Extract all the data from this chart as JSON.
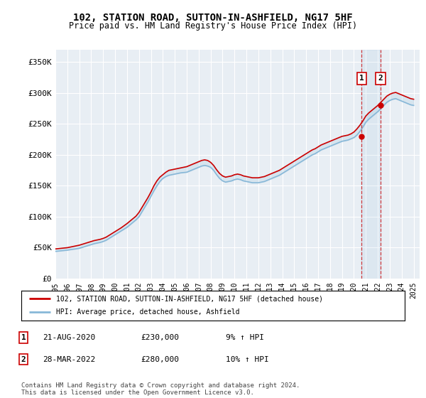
{
  "title": "102, STATION ROAD, SUTTON-IN-ASHFIELD, NG17 5HF",
  "subtitle": "Price paid vs. HM Land Registry's House Price Index (HPI)",
  "ylabel_ticks": [
    "£0",
    "£50K",
    "£100K",
    "£150K",
    "£200K",
    "£250K",
    "£300K",
    "£350K"
  ],
  "ytick_values": [
    0,
    50000,
    100000,
    150000,
    200000,
    250000,
    300000,
    350000
  ],
  "ylim": [
    0,
    370000
  ],
  "xlim_start": 1995.0,
  "xlim_end": 2025.5,
  "background_color": "#ffffff",
  "plot_bg_color": "#e8eef4",
  "grid_color": "#ffffff",
  "line1_color": "#cc0000",
  "line2_color": "#88b8d8",
  "legend_label1": "102, STATION ROAD, SUTTON-IN-ASHFIELD, NG17 5HF (detached house)",
  "legend_label2": "HPI: Average price, detached house, Ashfield",
  "marker1_date": 2020.64,
  "marker1_value": 230000,
  "marker2_date": 2022.24,
  "marker2_value": 280000,
  "annotation1": [
    "1",
    "21-AUG-2020",
    "£230,000",
    "9% ↑ HPI"
  ],
  "annotation2": [
    "2",
    "28-MAR-2022",
    "£280,000",
    "10% ↑ HPI"
  ],
  "footnote": "Contains HM Land Registry data © Crown copyright and database right 2024.\nThis data is licensed under the Open Government Licence v3.0.",
  "hpi_years": [
    1995.0,
    1995.25,
    1995.5,
    1995.75,
    1996.0,
    1996.25,
    1996.5,
    1996.75,
    1997.0,
    1997.25,
    1997.5,
    1997.75,
    1998.0,
    1998.25,
    1998.5,
    1998.75,
    1999.0,
    1999.25,
    1999.5,
    1999.75,
    2000.0,
    2000.25,
    2000.5,
    2000.75,
    2001.0,
    2001.25,
    2001.5,
    2001.75,
    2002.0,
    2002.25,
    2002.5,
    2002.75,
    2003.0,
    2003.25,
    2003.5,
    2003.75,
    2004.0,
    2004.25,
    2004.5,
    2004.75,
    2005.0,
    2005.25,
    2005.5,
    2005.75,
    2006.0,
    2006.25,
    2006.5,
    2006.75,
    2007.0,
    2007.25,
    2007.5,
    2007.75,
    2008.0,
    2008.25,
    2008.5,
    2008.75,
    2009.0,
    2009.25,
    2009.5,
    2009.75,
    2010.0,
    2010.25,
    2010.5,
    2010.75,
    2011.0,
    2011.25,
    2011.5,
    2011.75,
    2012.0,
    2012.25,
    2012.5,
    2012.75,
    2013.0,
    2013.25,
    2013.5,
    2013.75,
    2014.0,
    2014.25,
    2014.5,
    2014.75,
    2015.0,
    2015.25,
    2015.5,
    2015.75,
    2016.0,
    2016.25,
    2016.5,
    2016.75,
    2017.0,
    2017.25,
    2017.5,
    2017.75,
    2018.0,
    2018.25,
    2018.5,
    2018.75,
    2019.0,
    2019.25,
    2019.5,
    2019.75,
    2020.0,
    2020.25,
    2020.5,
    2020.75,
    2021.0,
    2021.25,
    2021.5,
    2021.75,
    2022.0,
    2022.25,
    2022.5,
    2022.75,
    2023.0,
    2023.25,
    2023.5,
    2023.75,
    2024.0,
    2024.25,
    2024.5,
    2024.75,
    2025.0
  ],
  "hpi_values": [
    44000,
    44500,
    45000,
    45500,
    46000,
    46800,
    47500,
    48200,
    49000,
    50500,
    52000,
    53500,
    55000,
    56500,
    57500,
    58500,
    60000,
    62000,
    65000,
    68000,
    71000,
    74000,
    77000,
    80000,
    83000,
    87000,
    91000,
    95000,
    100000,
    108000,
    116000,
    124000,
    133000,
    142000,
    150000,
    157000,
    162000,
    165000,
    167000,
    168000,
    169000,
    170000,
    171000,
    171500,
    172000,
    174000,
    176000,
    178000,
    180000,
    182000,
    183000,
    182000,
    180000,
    175000,
    168000,
    162000,
    158000,
    156000,
    157000,
    158000,
    160000,
    161000,
    160000,
    158000,
    157000,
    156000,
    155000,
    155000,
    155000,
    156000,
    157000,
    159000,
    161000,
    163000,
    165000,
    167000,
    170000,
    173000,
    176000,
    179000,
    182000,
    185000,
    188000,
    191000,
    194000,
    197000,
    200000,
    202000,
    205000,
    208000,
    210000,
    212000,
    214000,
    216000,
    218000,
    220000,
    222000,
    223000,
    224000,
    226000,
    228000,
    232000,
    238000,
    245000,
    253000,
    258000,
    262000,
    266000,
    270000,
    275000,
    280000,
    285000,
    288000,
    290000,
    291000,
    289000,
    287000,
    285000,
    283000,
    281000,
    280000
  ],
  "property_years": [
    1995.0,
    1995.25,
    1995.5,
    1995.75,
    1996.0,
    1996.25,
    1996.5,
    1996.75,
    1997.0,
    1997.25,
    1997.5,
    1997.75,
    1998.0,
    1998.25,
    1998.5,
    1998.75,
    1999.0,
    1999.25,
    1999.5,
    1999.75,
    2000.0,
    2000.25,
    2000.5,
    2000.75,
    2001.0,
    2001.25,
    2001.5,
    2001.75,
    2002.0,
    2002.25,
    2002.5,
    2002.75,
    2003.0,
    2003.25,
    2003.5,
    2003.75,
    2004.0,
    2004.25,
    2004.5,
    2004.75,
    2005.0,
    2005.25,
    2005.5,
    2005.75,
    2006.0,
    2006.25,
    2006.5,
    2006.75,
    2007.0,
    2007.25,
    2007.5,
    2007.75,
    2008.0,
    2008.25,
    2008.5,
    2008.75,
    2009.0,
    2009.25,
    2009.5,
    2009.75,
    2010.0,
    2010.25,
    2010.5,
    2010.75,
    2011.0,
    2011.25,
    2011.5,
    2011.75,
    2012.0,
    2012.25,
    2012.5,
    2012.75,
    2013.0,
    2013.25,
    2013.5,
    2013.75,
    2014.0,
    2014.25,
    2014.5,
    2014.75,
    2015.0,
    2015.25,
    2015.5,
    2015.75,
    2016.0,
    2016.25,
    2016.5,
    2016.75,
    2017.0,
    2017.25,
    2017.5,
    2017.75,
    2018.0,
    2018.25,
    2018.5,
    2018.75,
    2019.0,
    2019.25,
    2019.5,
    2019.75,
    2020.0,
    2020.25,
    2020.5,
    2020.75,
    2021.0,
    2021.25,
    2021.5,
    2021.75,
    2022.0,
    2022.25,
    2022.5,
    2022.75,
    2023.0,
    2023.25,
    2023.5,
    2023.75,
    2024.0,
    2024.25,
    2024.5,
    2024.75,
    2025.0
  ],
  "property_values": [
    48000,
    48500,
    49000,
    49500,
    50000,
    51000,
    52000,
    53000,
    54000,
    55500,
    57000,
    58500,
    60000,
    61500,
    62500,
    63500,
    65000,
    67000,
    70000,
    73000,
    76000,
    79000,
    82000,
    85500,
    89000,
    93000,
    97000,
    101000,
    107000,
    115000,
    123000,
    131000,
    140000,
    150000,
    158000,
    164000,
    168000,
    172000,
    175000,
    176000,
    177000,
    178000,
    179000,
    180000,
    181000,
    183000,
    185000,
    187000,
    189000,
    191000,
    192000,
    191000,
    188000,
    183000,
    176000,
    170000,
    166000,
    164000,
    165000,
    166000,
    168000,
    169000,
    168000,
    166000,
    165000,
    164000,
    163000,
    163000,
    163000,
    164000,
    165000,
    167000,
    169000,
    171000,
    173000,
    175000,
    178000,
    181000,
    184000,
    187000,
    190000,
    193000,
    196000,
    199000,
    202000,
    205000,
    208000,
    210000,
    213000,
    216000,
    218000,
    220000,
    222000,
    224000,
    226000,
    228000,
    230000,
    231000,
    232000,
    234000,
    237000,
    242000,
    248000,
    255000,
    263000,
    268000,
    272000,
    276000,
    280000,
    285000,
    290000,
    295000,
    298000,
    300000,
    301000,
    299000,
    297000,
    295000,
    293000,
    291000,
    290000
  ]
}
